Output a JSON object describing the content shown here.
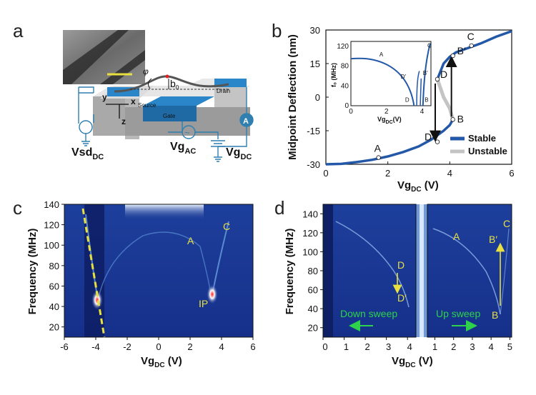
{
  "panels": {
    "a": "a",
    "b": "b",
    "c": "c",
    "d": "d"
  },
  "schematic": {
    "source": "Source",
    "drain": "Drain",
    "gate": "Gate",
    "axis_y": "y",
    "axis_x": "x",
    "axis_z": "z",
    "angle": "φ",
    "b0": "b",
    "b0_sub": "0",
    "vsd": "Vsd",
    "vsd_sub": "DC",
    "vgac": "Vg",
    "vgac_sub": "AC",
    "vgdc": "Vg",
    "vgdc_sub": "DC",
    "ammeter": "A"
  },
  "chart_data": [
    {
      "id": "b",
      "type": "line",
      "ylabel": "Midpoint Deflection (nm)",
      "xlabel": "Vg",
      "xlabel_sub": "DC",
      "xlabel_unit": " (V)",
      "xlim": [
        0,
        6
      ],
      "ylim": [
        -30,
        30
      ],
      "xticks": [
        "0",
        "2",
        "4",
        "6"
      ],
      "yticks": [
        "-30",
        "-15",
        "0",
        "15",
        "30"
      ],
      "series": [
        {
          "name": "Stable",
          "color": "#2358a8",
          "lower": {
            "x": [
              0,
              0.5,
              1,
              1.5,
              2,
              2.5,
              3,
              3.4,
              3.6,
              3.8,
              4.0,
              4.1
            ],
            "y": [
              -30,
              -29.8,
              -29,
              -28,
              -26.5,
              -24.5,
              -22,
              -19,
              -17,
              -15,
              -12.5,
              -10
            ]
          },
          "upper": {
            "x": [
              3.6,
              3.8,
              4.0,
              4.2,
              4.5,
              5,
              5.5,
              6
            ],
            "y": [
              8,
              15,
              18,
              20,
              21.5,
              24,
              27,
              29.5
            ]
          }
        },
        {
          "name": "Unstable",
          "color": "#c4c4c4",
          "branch": {
            "x": [
              3.6,
              3.8,
              4.0,
              4.1
            ],
            "y": [
              8,
              0,
              -5,
              -10
            ]
          }
        }
      ],
      "points": [
        {
          "label": "A",
          "x": 1.7,
          "y": -27
        },
        {
          "label": "B",
          "x": 4.1,
          "y": -10
        },
        {
          "label": "B′",
          "x": 4.1,
          "y": 18.5
        },
        {
          "label": "C",
          "x": 4.7,
          "y": 23
        },
        {
          "label": "D",
          "x": 3.6,
          "y": 8
        },
        {
          "label": "D′",
          "x": 3.6,
          "y": -20
        }
      ],
      "legend": "bottom-right",
      "inset": {
        "ylabel": "f₀ (MHz)",
        "xlabel": "Vg",
        "xlabel_sub": "DC",
        "xlabel_unit": "(V)",
        "xlim": [
          0,
          4.5
        ],
        "ylim": [
          0,
          130
        ],
        "xticks": [
          "0",
          "2",
          "4"
        ],
        "yticks": [
          "0",
          "40",
          "80",
          "120"
        ],
        "labels": [
          "A",
          "B",
          "B′",
          "C",
          "D",
          "D′"
        ]
      }
    },
    {
      "id": "c",
      "type": "heatmap",
      "ylabel": "Frequency (MHz)",
      "xlabel": "Vg",
      "xlabel_sub": "DC",
      "xlabel_unit": " (V)",
      "xlim": [
        -6,
        6
      ],
      "ylim": [
        10,
        140
      ],
      "xticks": [
        "-6",
        "-4",
        "-2",
        "0",
        "2",
        "4",
        "6"
      ],
      "yticks": [
        "20",
        "40",
        "60",
        "80",
        "100",
        "120",
        "140"
      ],
      "labels": [
        "A",
        "C",
        "IP"
      ]
    },
    {
      "id": "d",
      "type": "heatmap",
      "ylabel": "Frequency (MHz)",
      "xlabel": "Vg",
      "xlabel_sub": "DC",
      "xlabel_unit": " (V)",
      "ylim": [
        10,
        150
      ],
      "left_xticks": [
        "0",
        "1",
        "2",
        "3",
        "4"
      ],
      "right_xticks": [
        "1",
        "2",
        "3",
        "4",
        "5"
      ],
      "yticks": [
        "20",
        "40",
        "60",
        "80",
        "100",
        "120",
        "140"
      ],
      "labels": [
        "D",
        "D′",
        "A",
        "B′",
        "C",
        "B"
      ],
      "down_sweep": "Down sweep",
      "up_sweep": "Up sweep"
    }
  ],
  "colors": {
    "stable": "#2358a8",
    "unstable": "#c4c4c4",
    "annotation": "#e8e040",
    "sweep": "#2dd24a"
  }
}
